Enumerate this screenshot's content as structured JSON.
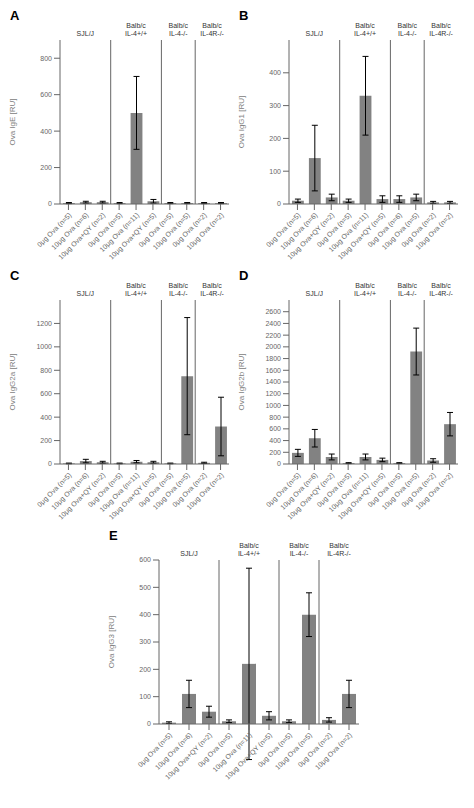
{
  "chart_data": [
    {
      "type": "bar",
      "title": "A",
      "y_label": "Ova IgE [RU]",
      "categories": [
        "0μg Ova (n=5)",
        "10μg Ova (n=6)",
        "10μg Ova+QY (n=2)",
        "0μg Ova (n=5)",
        "10μg Ova (n=11)",
        "10μg Ova+QY (n=5)",
        "0μg Ova (n=5)",
        "10μg Ova (n=5)",
        "0μg Ova (n=2)",
        "10μg Ova (n=2)"
      ],
      "values": [
        5,
        10,
        10,
        5,
        500,
        15,
        5,
        5,
        5,
        5
      ],
      "errors": [
        3,
        5,
        5,
        3,
        200,
        10,
        3,
        3,
        3,
        3
      ],
      "color": "#828282",
      "ylim": [
        0,
        900
      ],
      "yticks": [
        0,
        200,
        400,
        600,
        800
      ],
      "annotations": [
        "SJL/J",
        "Balb/c\nIL-4+/+",
        "Balb/c\nIL-4-/-",
        "Balb/c\nIL-4R-/-"
      ]
    },
    {
      "type": "bar",
      "title": "B",
      "y_label": "Ova IgG1 [RU]",
      "categories": [
        "0μg Ova (n=5)",
        "10μg Ova (n=6)",
        "10μg Ova+QY (n=2)",
        "0μg Ova (n=5)",
        "10μg Ova (n=11)",
        "10μg Ova+QY (n=5)",
        "0μg Ova (n=6)",
        "10μg Ova (n=5)",
        "0μg Ova (n=2)",
        "10μg Ova (n=2)"
      ],
      "values": [
        10,
        140,
        20,
        10,
        330,
        15,
        15,
        20,
        5,
        5
      ],
      "errors": [
        5,
        100,
        10,
        5,
        120,
        10,
        10,
        10,
        3,
        3
      ],
      "color": "#828282",
      "ylim": [
        0,
        500
      ],
      "yticks": [
        0,
        100,
        200,
        300,
        400
      ],
      "annotations": [
        "SJL/J",
        "Balb/c\nIL-4+/+",
        "Balb/c\nIL-4-/-",
        "Balb/c\nIL-4R-/-"
      ]
    },
    {
      "type": "bar",
      "title": "C",
      "y_label": "Ova IgG2a [RU]",
      "categories": [
        "0μg Ova (n=5)",
        "10μg Ova (n=6)",
        "10μg Ova+QY (n=2)",
        "0μg Ova (n=5)",
        "10μg Ova (n=11)",
        "10μg Ova+QY (n=5)",
        "0μg Ova (n=5)",
        "10μg Ova (n=5)",
        "0μg Ova (n=2)",
        "10μg Ova (n=2)"
      ],
      "values": [
        5,
        25,
        15,
        5,
        20,
        15,
        5,
        750,
        10,
        320
      ],
      "errors": [
        3,
        15,
        8,
        3,
        10,
        8,
        3,
        500,
        5,
        250
      ],
      "color": "#828282",
      "ylim": [
        0,
        1400
      ],
      "yticks": [
        0,
        200,
        400,
        600,
        800,
        1000,
        1200
      ],
      "annotations": [
        "SJL/J",
        "Balb/c\nIL-4+/+",
        "Balb/c\nIL-4-/-",
        "Balb/c\nIL-4R-/-"
      ]
    },
    {
      "type": "bar",
      "title": "D",
      "y_label": "Ova IgG2b [RU]",
      "categories": [
        "0μg Ova (n=5)",
        "10μg Ova (n=6)",
        "10μg Ova+QY (n=2)",
        "0μg Ova (n=5)",
        "10μg Ova (n=11)",
        "10μg Ova+QY (n=5)",
        "0μg Ova (n=5)",
        "10μg Ova (n=5)",
        "0μg Ova (n=2)",
        "10μg Ova (n=2)"
      ],
      "values": [
        190,
        440,
        120,
        15,
        120,
        70,
        15,
        1920,
        60,
        680
      ],
      "errors": [
        60,
        150,
        50,
        8,
        50,
        30,
        8,
        400,
        30,
        200
      ],
      "color": "#828282",
      "ylim": [
        0,
        2800
      ],
      "yticks": [
        0,
        200,
        400,
        600,
        800,
        1000,
        1200,
        1400,
        1600,
        1800,
        2000,
        2200,
        2400,
        2600
      ],
      "annotations": [
        "SJL/J",
        "Balb/c\nIL-4+/+",
        "Balb/c\nIL-4-/-",
        "Balb/c\nIL-4R-/-"
      ]
    },
    {
      "type": "bar",
      "title": "E",
      "y_label": "Ova IgG3 [RU]",
      "categories": [
        "0μg Ova (n=5)",
        "10μg Ova (n=6)",
        "10μg Ova+QY (n=2)",
        "0μg Ova (n=5)",
        "10μg Ova (n=11)",
        "10μg Ova+QY (n=5)",
        "0μg Ova (n=5)",
        "10μg Ova (n=5)",
        "0μg Ova (n=2)",
        "10μg Ova (n=2)"
      ],
      "values": [
        5,
        110,
        45,
        10,
        220,
        30,
        10,
        400,
        15,
        110
      ],
      "errors": [
        3,
        50,
        20,
        5,
        350,
        15,
        5,
        80,
        8,
        50
      ],
      "color": "#828282",
      "ylim": [
        0,
        600
      ],
      "yticks": [
        0,
        100,
        200,
        300,
        400,
        500,
        600
      ],
      "annotations": [
        "SJL/J",
        "Balb/c\nIL-4+/+",
        "Balb/c\nIL-4-/-",
        "Balb/c\nIL-4R-/-"
      ]
    }
  ]
}
